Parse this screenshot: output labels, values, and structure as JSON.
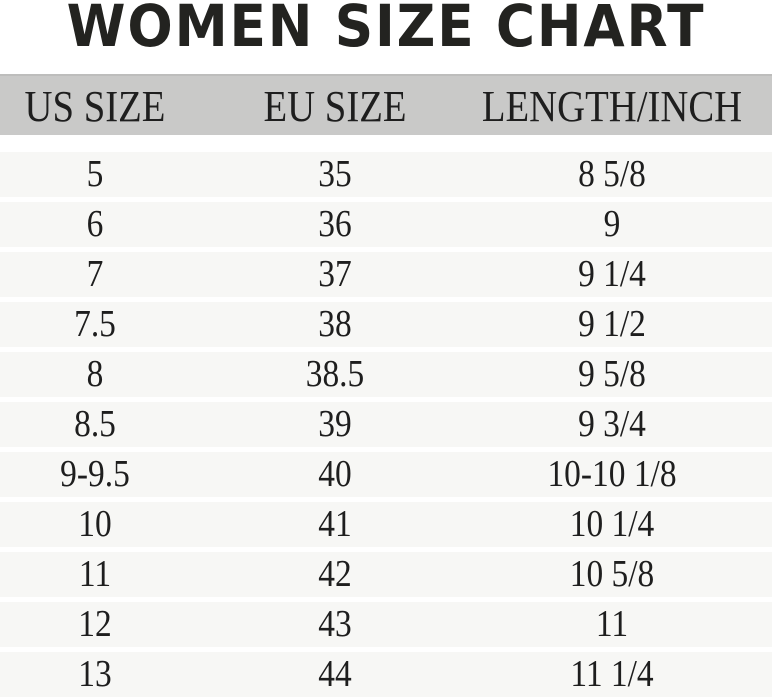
{
  "title": "WOMEN SIZE CHART",
  "headers": [
    "US SIZE",
    "EU SIZE",
    "LENGTH/INCH"
  ],
  "rows": [
    [
      "5",
      "35",
      "8 5/8"
    ],
    [
      "6",
      "36",
      "9"
    ],
    [
      "7",
      "37",
      "9 1/4"
    ],
    [
      "7.5",
      "38",
      "9 1/2"
    ],
    [
      "8",
      "38.5",
      "9 5/8"
    ],
    [
      "8.5",
      "39",
      "9 3/4"
    ],
    [
      "9-9.5",
      "40",
      "10-10 1/8"
    ],
    [
      "10",
      "41",
      "10 1/4"
    ],
    [
      "11",
      "42",
      "10 5/8"
    ],
    [
      "12",
      "43",
      "11"
    ],
    [
      "13",
      "44",
      "11 1/4"
    ]
  ],
  "colors": {
    "header_bg": "#c9c9c8",
    "row_bg": "#f7f7f5",
    "text": "#1e1e1e"
  }
}
